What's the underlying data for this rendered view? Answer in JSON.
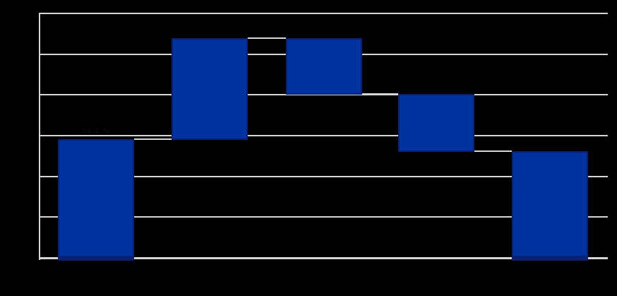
{
  "chart_data": {
    "type": "waterfall",
    "bar_count": 5,
    "bars": [
      {
        "start": 0,
        "end": 29.1,
        "role": "increase"
      },
      {
        "start": 29.1,
        "end": 53.9,
        "role": "increase"
      },
      {
        "start": 53.9,
        "end": 40.3,
        "role": "decrease"
      },
      {
        "start": 40.3,
        "end": 26.1,
        "role": "decrease"
      },
      {
        "start": 26.1,
        "end": 0,
        "role": "total"
      }
    ],
    "connector_levels": [
      29.1,
      53.9,
      40.3,
      26.1
    ],
    "ylim": [
      0,
      60
    ],
    "gridline_step": 10,
    "gridline_count": 7,
    "grid": "horizontal-only",
    "legend": "none",
    "axis_tick_labels": "not-visible (black on black)",
    "data_label": {
      "text": "29.1 %",
      "bar_index": 0,
      "position": "above-bar"
    }
  },
  "colors": {
    "background": "#000000",
    "bar_fill": "#0033A0",
    "bar_edge": "#0A2173",
    "grid_line": "#D6D6D6",
    "spine": "#D6D6D6",
    "connector": "#D6D6D6",
    "data_label_text": "#141414"
  }
}
